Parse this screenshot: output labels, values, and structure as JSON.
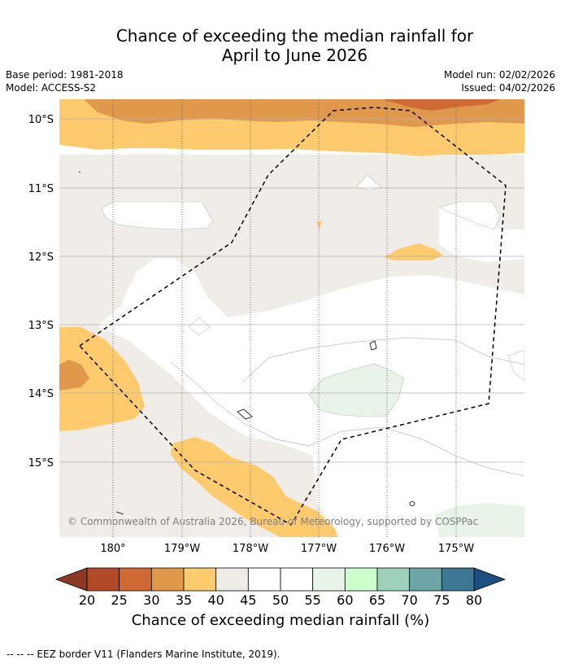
{
  "title": {
    "line1": "Chance of exceeding the median rainfall for",
    "line2": "April to June 2026"
  },
  "header": {
    "base_period": "Base period: 1981-2018",
    "model": "Model: ACCESS-S2",
    "model_run": "Model run: 02/02/2026",
    "issued": "Issued: 04/02/2026"
  },
  "map": {
    "lat_labels": [
      "10°S",
      "11°S",
      "12°S",
      "13°S",
      "14°S",
      "15°S"
    ],
    "lon_labels": [
      "180°",
      "179°W",
      "178°W",
      "177°W",
      "176°W",
      "175°W"
    ],
    "copyright": "© Commonwealth of Australia 2026, Bureau of Meteorology, supported by COSPPac"
  },
  "colorbar": {
    "ticks": [
      "20",
      "25",
      "30",
      "35",
      "40",
      "45",
      "50",
      "55",
      "60",
      "65",
      "70",
      "75",
      "80"
    ],
    "colors": [
      "#b24a2a",
      "#cf6a34",
      "#e0994c",
      "#fdcb6e",
      "#f0ece7",
      "#ffffff",
      "#ffffff",
      "#e8f4e8",
      "#ccffcc",
      "#9ed1bc",
      "#6ea5a7",
      "#3e7796"
    ],
    "low_color": "#8c3a24",
    "high_color": "#1c4f7f",
    "title": "Chance of exceeding median rainfall (%)"
  },
  "footnote": "--  --  -- EEZ border V11 (Flanders Marine Institute, 2019)."
}
